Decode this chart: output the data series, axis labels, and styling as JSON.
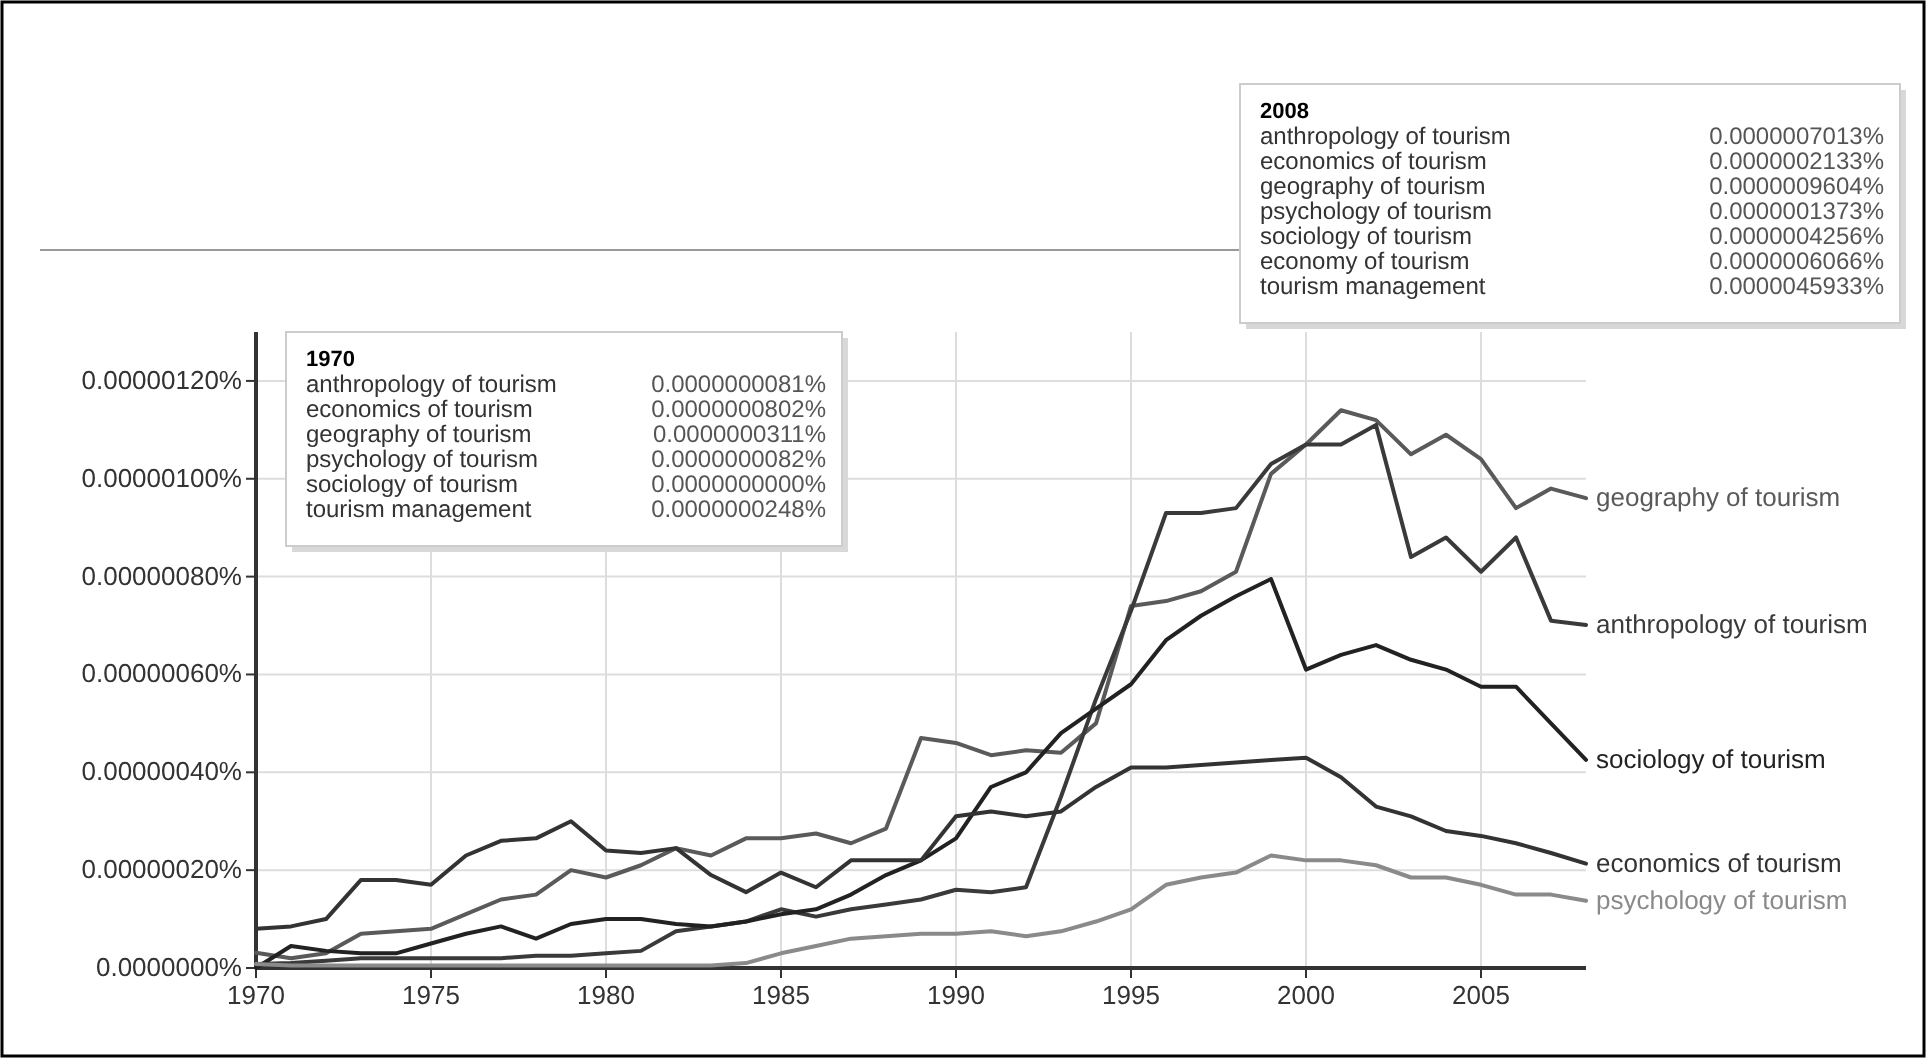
{
  "chart_data": {
    "type": "line",
    "x": [
      1970,
      1971,
      1972,
      1973,
      1974,
      1975,
      1976,
      1977,
      1978,
      1979,
      1980,
      1981,
      1982,
      1983,
      1984,
      1985,
      1986,
      1987,
      1988,
      1989,
      1990,
      1991,
      1992,
      1993,
      1994,
      1995,
      1996,
      1997,
      1998,
      1999,
      2000,
      2001,
      2002,
      2003,
      2004,
      2005,
      2006,
      2007,
      2008
    ],
    "series": [
      {
        "name": "geography of tourism",
        "color": "#5a5a5a",
        "values": [
          3.11e-08,
          2e-08,
          3e-08,
          7e-08,
          7.5e-08,
          8e-08,
          1.1e-07,
          1.4e-07,
          1.5e-07,
          2e-07,
          1.85e-07,
          2.1e-07,
          2.45e-07,
          2.3e-07,
          2.65e-07,
          2.65e-07,
          2.75e-07,
          2.55e-07,
          2.85e-07,
          4.7e-07,
          4.6e-07,
          4.35e-07,
          4.45e-07,
          4.4e-07,
          5e-07,
          7.4e-07,
          7.5e-07,
          7.7e-07,
          8.1e-07,
          1.01e-06,
          1.07e-06,
          1.14e-06,
          1.12e-06,
          1.05e-06,
          1.09e-06,
          1.04e-06,
          9.4e-07,
          9.8e-07,
          9.604e-07
        ]
      },
      {
        "name": "anthropology of tourism",
        "color": "#3a3a3a",
        "values": [
          8.1e-09,
          1e-08,
          1.5e-08,
          2e-08,
          2e-08,
          2e-08,
          2e-08,
          2e-08,
          2.5e-08,
          2.5e-08,
          3e-08,
          3.5e-08,
          7.5e-08,
          8.5e-08,
          9.5e-08,
          1.2e-07,
          1.05e-07,
          1.2e-07,
          1.3e-07,
          1.4e-07,
          1.6e-07,
          1.55e-07,
          1.65e-07,
          3.5e-07,
          5.5e-07,
          7.3e-07,
          9.3e-07,
          9.3e-07,
          9.4e-07,
          1.03e-06,
          1.07e-06,
          1.07e-06,
          1.11e-06,
          8.4e-07,
          8.8e-07,
          8.1e-07,
          8.8e-07,
          7.1e-07,
          7.013e-07
        ]
      },
      {
        "name": "sociology of tourism",
        "color": "#222222",
        "values": [
          0,
          4.5e-08,
          3.5e-08,
          3e-08,
          3e-08,
          5e-08,
          7e-08,
          8.5e-08,
          6e-08,
          9e-08,
          1e-07,
          1e-07,
          9e-08,
          8.5e-08,
          9.5e-08,
          1.1e-07,
          1.2e-07,
          1.5e-07,
          1.9e-07,
          2.2e-07,
          2.65e-07,
          3.7e-07,
          4e-07,
          4.8e-07,
          5.3e-07,
          5.8e-07,
          6.7e-07,
          7.2e-07,
          7.6e-07,
          7.95e-07,
          6.1e-07,
          6.4e-07,
          6.6e-07,
          6.3e-07,
          6.1e-07,
          5.75e-07,
          5.75e-07,
          5e-07,
          4.256e-07
        ]
      },
      {
        "name": "economics of tourism",
        "color": "#333333",
        "values": [
          8.02e-08,
          8.5e-08,
          1e-07,
          1.8e-07,
          1.8e-07,
          1.7e-07,
          2.3e-07,
          2.6e-07,
          2.65e-07,
          3e-07,
          2.4e-07,
          2.35e-07,
          2.45e-07,
          1.9e-07,
          1.55e-07,
          1.95e-07,
          1.65e-07,
          2.2e-07,
          2.2e-07,
          2.2e-07,
          3.1e-07,
          3.2e-07,
          3.1e-07,
          3.2e-07,
          3.7e-07,
          4.1e-07,
          4.1e-07,
          4.15e-07,
          4.2e-07,
          4.25e-07,
          4.3e-07,
          3.9e-07,
          3.3e-07,
          3.1e-07,
          2.8e-07,
          2.7e-07,
          2.55e-07,
          2.35e-07,
          2.133e-07
        ]
      },
      {
        "name": "psychology of tourism",
        "color": "#8a8a8a",
        "values": [
          8.2e-09,
          5e-09,
          5e-09,
          5e-09,
          5e-09,
          5e-09,
          5e-09,
          5e-09,
          5e-09,
          5e-09,
          5e-09,
          5e-09,
          5e-09,
          5e-09,
          1e-08,
          3e-08,
          4.5e-08,
          6e-08,
          6.5e-08,
          7e-08,
          7e-08,
          7.5e-08,
          6.5e-08,
          7.5e-08,
          9.5e-08,
          1.2e-07,
          1.7e-07,
          1.85e-07,
          1.95e-07,
          2.3e-07,
          2.2e-07,
          2.2e-07,
          2.1e-07,
          1.85e-07,
          1.85e-07,
          1.7e-07,
          1.5e-07,
          1.5e-07,
          1.373e-07
        ]
      }
    ],
    "xlim": [
      1970,
      2008
    ],
    "xticks": [
      1970,
      1975,
      1980,
      1985,
      1990,
      1995,
      2000,
      2005
    ],
    "ylim": [
      0,
      1.3e-06
    ],
    "yticks": [
      {
        "value": 0,
        "label": "0.0000000%"
      },
      {
        "value": 2e-07,
        "label": "0.00000020%"
      },
      {
        "value": 4e-07,
        "label": "0.00000040%"
      },
      {
        "value": 6e-07,
        "label": "0.00000060%"
      },
      {
        "value": 8e-07,
        "label": "0.00000080%"
      },
      {
        "value": 1e-06,
        "label": "0.00000100%"
      },
      {
        "value": 1.2e-06,
        "label": "0.00000120%"
      }
    ],
    "grid": true,
    "annotations": [
      "1970",
      "anthropology of tourism\t0.0000000081%",
      "economics of tourism\t0.0000000802%",
      "geography of tourism\t0.0000000311%",
      "psychology of tourism\t0.0000000082%",
      "sociology of tourism\t0.0000000000%",
      "tourism management\t0.0000000248%",
      "2008",
      "anthropology of tourism\t0.0000007013%",
      "economics of tourism\t0.0000002133%",
      "geography of tourism\t0.0000009604%",
      "psychology of tourism\t0.0000001373%",
      "sociology of tourism\t0.0000004256%",
      "economy of tourism\t0.0000006066%",
      "tourism management\t0.0000045933%"
    ]
  }
}
